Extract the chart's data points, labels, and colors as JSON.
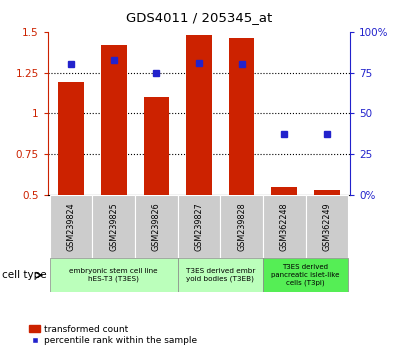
{
  "title": "GDS4011 / 205345_at",
  "samples": [
    "GSM239824",
    "GSM239825",
    "GSM239826",
    "GSM239827",
    "GSM239828",
    "GSM362248",
    "GSM362249"
  ],
  "red_bars": [
    1.19,
    1.42,
    1.1,
    1.48,
    1.46,
    0.55,
    0.53
  ],
  "blue_percentiles": [
    80,
    83,
    75,
    81,
    80,
    37,
    37
  ],
  "ylim_left": [
    0.5,
    1.5
  ],
  "ylim_right": [
    0,
    100
  ],
  "yticks_left": [
    0.5,
    0.75,
    1.0,
    1.25,
    1.5
  ],
  "ytick_labels_left": [
    "0.5",
    "0.75",
    "1",
    "1.25",
    "1.5"
  ],
  "yticks_right": [
    0,
    25,
    50,
    75,
    100
  ],
  "ytick_labels_right": [
    "0%",
    "25",
    "50",
    "75",
    "100%"
  ],
  "bar_color": "#cc2200",
  "square_color": "#2222cc",
  "bar_width": 0.6,
  "legend_red_label": "transformed count",
  "legend_blue_label": "percentile rank within the sample",
  "group1_label": "embryonic stem cell line\nhES-T3 (T3ES)",
  "group2_label": "T3ES derived embr\nyoid bodies (T3EB)",
  "group3_label": "T3ES derived\npancreatic islet-like\ncells (T3pi)",
  "group1_color": "#bbffbb",
  "group2_color": "#bbffbb",
  "group3_color": "#55ee55",
  "gray_box_color": "#cccccc",
  "cell_type_label": "cell type"
}
